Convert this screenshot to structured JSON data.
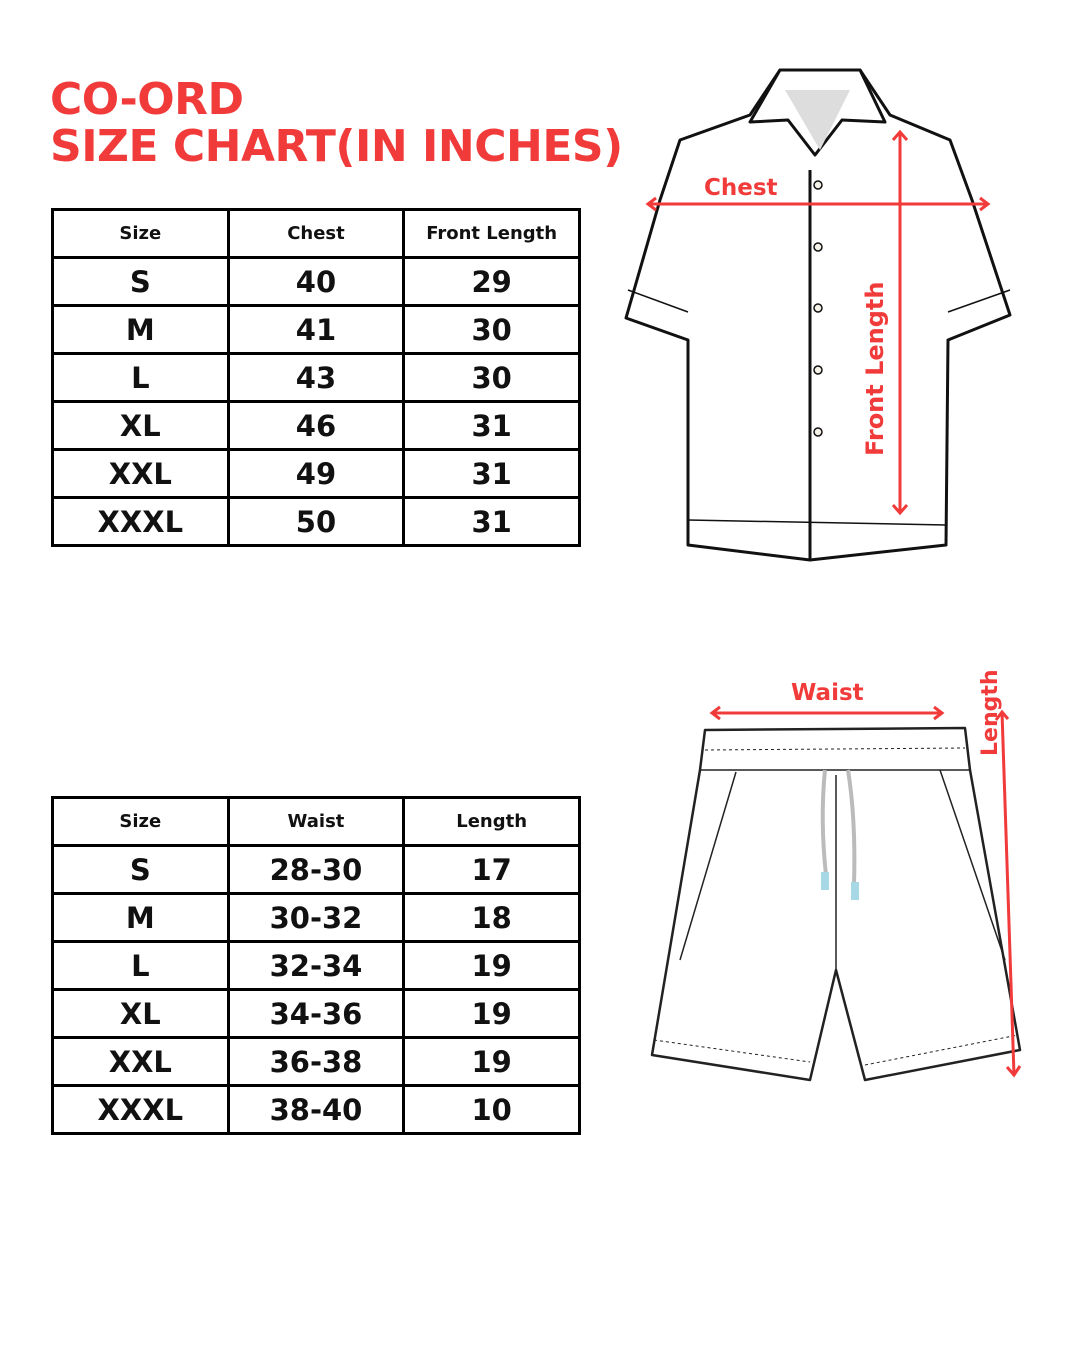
{
  "title": {
    "line1": "CO-ORD",
    "line2": "SIZE CHART(IN INCHES)"
  },
  "accent_color": "#f13a3a",
  "shirt_table": {
    "headers": [
      "Size",
      "Chest",
      "Front Length"
    ],
    "rows": [
      [
        "S",
        "40",
        "29"
      ],
      [
        "M",
        "41",
        "30"
      ],
      [
        "L",
        "43",
        "30"
      ],
      [
        "XL",
        "46",
        "31"
      ],
      [
        "XXL",
        "49",
        "31"
      ],
      [
        "XXXL",
        "50",
        "31"
      ]
    ]
  },
  "shorts_table": {
    "headers": [
      "Size",
      "Waist",
      "Length"
    ],
    "rows": [
      [
        "S",
        "28-30",
        "17"
      ],
      [
        "M",
        "30-32",
        "18"
      ],
      [
        "L",
        "32-34",
        "19"
      ],
      [
        "XL",
        "34-36",
        "19"
      ],
      [
        "XXL",
        "36-38",
        "19"
      ],
      [
        "XXXL",
        "38-40",
        "10"
      ]
    ]
  },
  "shirt_diagram": {
    "chest_label": "Chest",
    "length_label": "Front Length"
  },
  "shorts_diagram": {
    "waist_label": "Waist",
    "length_label": "Length"
  }
}
